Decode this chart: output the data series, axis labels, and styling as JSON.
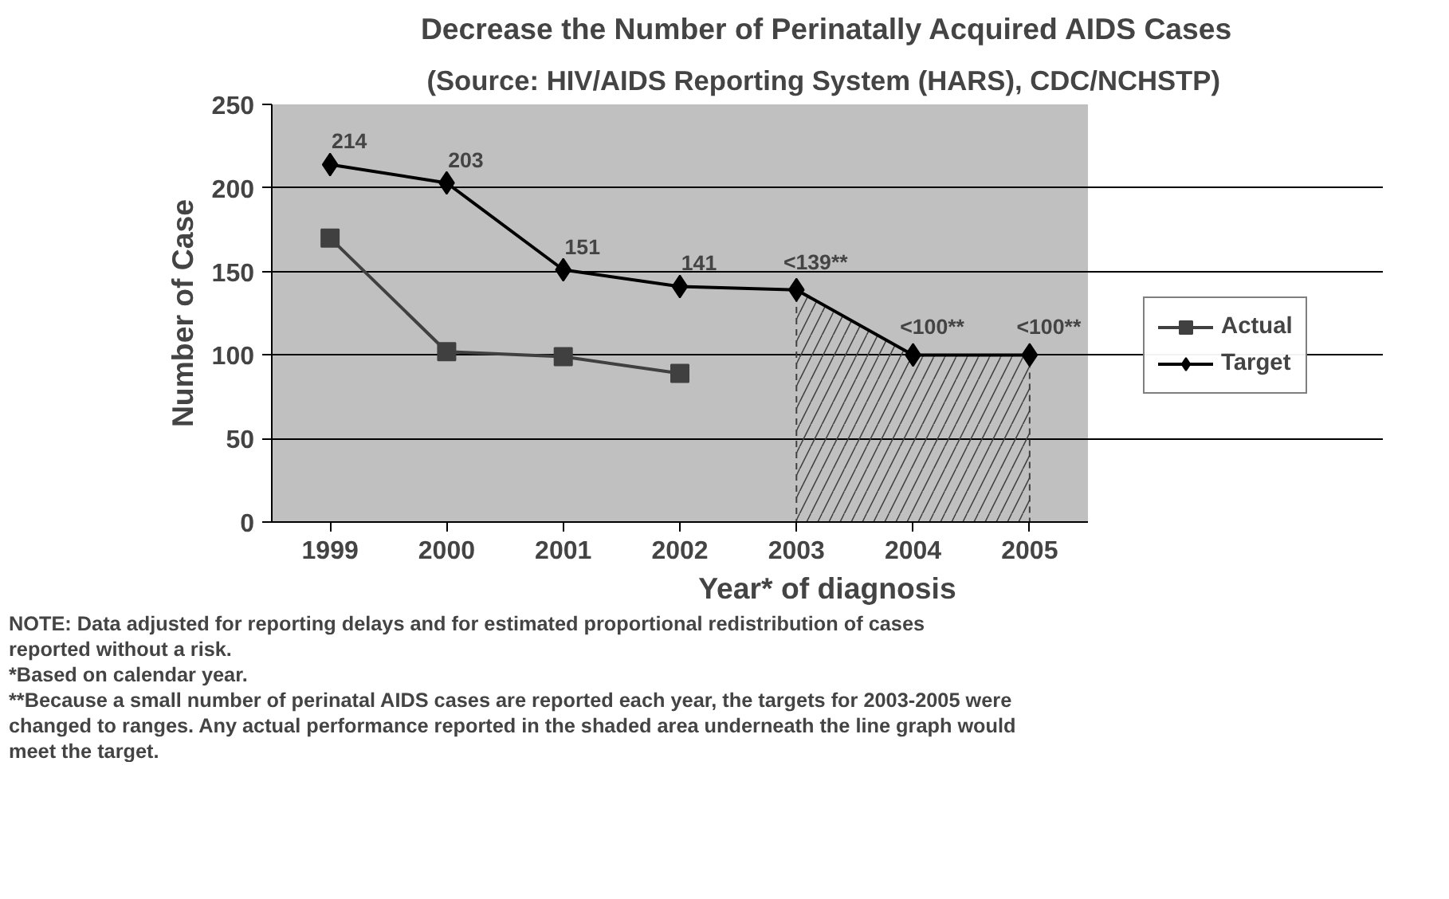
{
  "chart_data": {
    "type": "line",
    "title": "Decrease the Number of Perinatally Acquired AIDS Cases",
    "subtitle": "(Source:  HIV/AIDS Reporting System (HARS), CDC/NCHSTP)",
    "xlabel": "Year* of diagnosis",
    "ylabel": "Number of Case",
    "categories": [
      "1999",
      "2000",
      "2001",
      "2002",
      "2003",
      "2004",
      "2005"
    ],
    "series": [
      {
        "type": "area",
        "color": "#404040",
        "line_style": "dashed",
        "values": [
          null,
          null,
          null,
          null,
          139,
          100,
          100
        ]
      },
      {
        "name": "Actual",
        "color": "#404040",
        "marker": "square",
        "values": [
          170,
          102,
          99,
          89,
          null,
          null,
          null
        ]
      },
      {
        "name": "Target",
        "color": "#000000",
        "marker": "diamond",
        "values": [
          214,
          203,
          151,
          141,
          139,
          100,
          100
        ],
        "value_labels": [
          "214",
          "203",
          "151",
          "141",
          "<139**",
          "<100**",
          "<100**"
        ]
      }
    ],
    "ylim": [
      0,
      250
    ],
    "yticks": [
      0,
      50,
      100,
      150,
      200,
      250
    ],
    "grid": "y",
    "legend": "right",
    "annotations": [
      "NOTE:  Data adjusted for reporting delays and for estimated proportional redistribution of cases reported without a risk.",
      "*Based on calendar year.",
      "**Because a small number of perinatal AIDS cases are reported each year, the targets for 2003-2005 were changed to ranges.  Any actual performance reported in the shaded area underneath the line graph would meet the target."
    ]
  }
}
